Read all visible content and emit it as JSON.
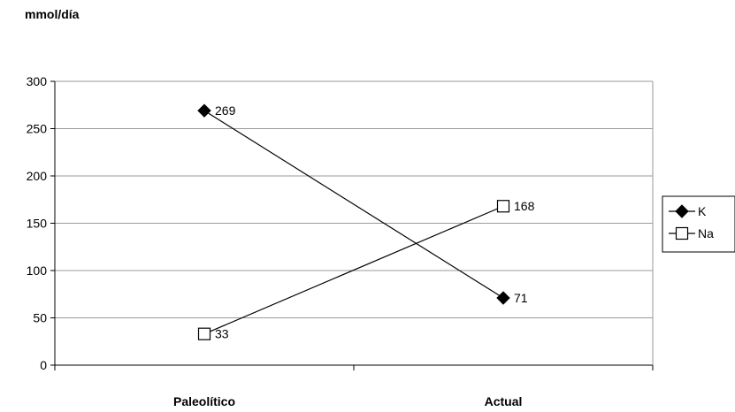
{
  "chart_data": {
    "type": "line",
    "ylabel": "mmol/día",
    "categories": [
      "Paleolítico",
      "Actual"
    ],
    "ylim": [
      0,
      300
    ],
    "yticks": [
      "0",
      "50",
      "100",
      "150",
      "200",
      "250",
      "300"
    ],
    "grid": true,
    "legend_position": "right",
    "series": [
      {
        "name": "K",
        "marker": "filled-diamond",
        "color": "#000000",
        "values": [
          269,
          71
        ],
        "labels": [
          "269",
          "71"
        ]
      },
      {
        "name": "Na",
        "marker": "open-square",
        "color": "#000000",
        "values": [
          33,
          168
        ],
        "labels": [
          "33",
          "168"
        ]
      }
    ]
  }
}
